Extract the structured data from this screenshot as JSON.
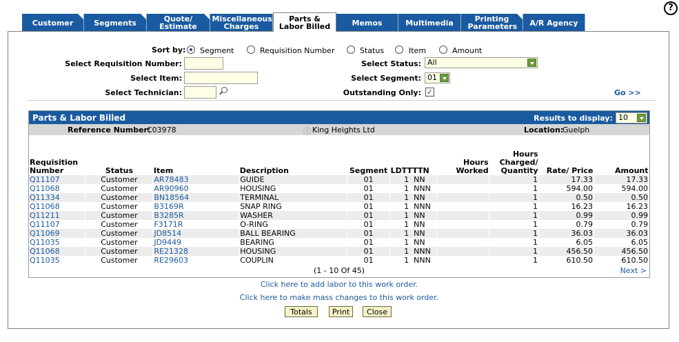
{
  "help_label": "?",
  "tabs": [
    {
      "label": "Customer"
    },
    {
      "label": "Segments"
    },
    {
      "label": "Quote/ Estimate"
    },
    {
      "label": "Miscellaneous Charges"
    },
    {
      "label": "Parts & Labor Billed"
    },
    {
      "label": "Memos"
    },
    {
      "label": "Multimedia"
    },
    {
      "label": "Printing Parameters"
    },
    {
      "label": "A/R Agency"
    }
  ],
  "filters": {
    "sort_by_label": "Sort by:",
    "sort_options": [
      "Segment",
      "Requisition Number",
      "Status",
      "Item",
      "Amount"
    ],
    "sort_selected": "Segment",
    "req_label": "Select Requisition Number:",
    "req_value": "",
    "item_label": "Select Item:",
    "item_value": "",
    "tech_label": "Select Technician:",
    "tech_value": "",
    "status_label": "Select Status:",
    "status_value": "All",
    "segment_label": "Select Segment:",
    "segment_value": "01",
    "outstanding_label": "Outstanding Only:",
    "outstanding_checked": true,
    "go_label": "Go >>"
  },
  "grid": {
    "title": "Parts & Labor Billed",
    "results_label": "Results to display:",
    "results_value": "10",
    "reference_label": "Reference Number:",
    "reference_value": "C03978",
    "customer_name": "King Heights Ltd",
    "location_label": "Location:",
    "location_value": "Guelph",
    "columns": [
      "Requisition Number",
      "Status",
      "Item",
      "Description",
      "Segment",
      "LDTTTTN",
      "Hours Worked",
      "Hours Charged/ Quantity",
      "Rate/ Price",
      "Amount"
    ],
    "rows": [
      {
        "req": "Q11107",
        "status": "Customer",
        "item": "AR78483",
        "desc": "GUIDE",
        "seg": "01",
        "ld": "1  NN",
        "hw": "",
        "hc": "1",
        "rate": "17.33",
        "amt": "17.33"
      },
      {
        "req": "Q11068",
        "status": "Customer",
        "item": "AR90960",
        "desc": "HOUSING",
        "seg": "01",
        "ld": "1  NNN",
        "hw": "",
        "hc": "1",
        "rate": "594.00",
        "amt": "594.00"
      },
      {
        "req": "Q11334",
        "status": "Customer",
        "item": "BN18564",
        "desc": "TERMINAL",
        "seg": "01",
        "ld": "1  NN",
        "hw": "",
        "hc": "1",
        "rate": "0.50",
        "amt": "0.50"
      },
      {
        "req": "Q11068",
        "status": "Customer",
        "item": "B3169R",
        "desc": "SNAP RING",
        "seg": "01",
        "ld": "1  NNN",
        "hw": "",
        "hc": "1",
        "rate": "16.23",
        "amt": "16.23"
      },
      {
        "req": "Q11211",
        "status": "Customer",
        "item": "B3285R",
        "desc": "WASHER",
        "seg": "01",
        "ld": "1  NN",
        "hw": "",
        "hc": "1",
        "rate": "0.99",
        "amt": "0.99"
      },
      {
        "req": "Q11107",
        "status": "Customer",
        "item": "F3171R",
        "desc": "O-RING",
        "seg": "01",
        "ld": "1  NN",
        "hw": "",
        "hc": "1",
        "rate": "0.79",
        "amt": "0.79"
      },
      {
        "req": "Q11069",
        "status": "Customer",
        "item": "JD8514",
        "desc": "BALL BEARING",
        "seg": "01",
        "ld": "1  NN",
        "hw": "",
        "hc": "1",
        "rate": "36.03",
        "amt": "36.03"
      },
      {
        "req": "Q11035",
        "status": "Customer",
        "item": "JD9449",
        "desc": "BEARING",
        "seg": "01",
        "ld": "1  NN",
        "hw": "",
        "hc": "1",
        "rate": "6.05",
        "amt": "6.05"
      },
      {
        "req": "Q11068",
        "status": "Customer",
        "item": "RE21328",
        "desc": "HOUSING",
        "seg": "01",
        "ld": "1  NNN",
        "hw": "",
        "hc": "1",
        "rate": "456.50",
        "amt": "456.50"
      },
      {
        "req": "Q11035",
        "status": "Customer",
        "item": "RE29603",
        "desc": "COUPLIN",
        "seg": "01",
        "ld": "1  NNN",
        "hw": "",
        "hc": "1",
        "rate": "610.50",
        "amt": "610.50"
      }
    ],
    "pager_text": "(1 - 10 Of 45)",
    "next_label": "Next >"
  },
  "actions": {
    "add_labor_link": "Click here to add labor to this work order.",
    "mass_change_link": "Click here to make mass changes to this work order.",
    "totals_label": "Totals",
    "print_label": "Print",
    "close_label": "Close"
  }
}
